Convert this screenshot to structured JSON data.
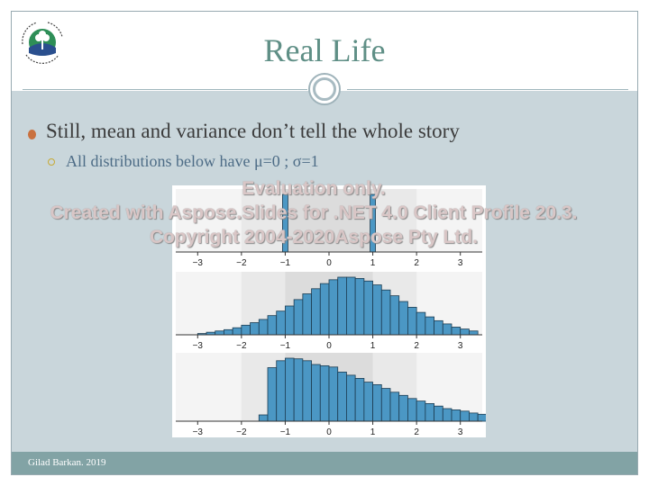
{
  "slide": {
    "title": "Real Life",
    "bullet_main": "Still, mean and variance don’t tell the whole story",
    "bullet_sub": "All distributions below have μ=0 ; σ=1",
    "footer": "Gilad Barkan. 2019"
  },
  "watermark": {
    "line1": "Evaluation only.",
    "line2": "Created with Aspose.Slides for .NET 4.0 Client Profile 20.3.",
    "line3": "Copyright 2004-2020Aspose Pty Ltd."
  },
  "chart_data": [
    {
      "type": "bar",
      "xlim": [
        -3.5,
        3.5
      ],
      "xticks": [
        "−3",
        "−2",
        "−1",
        "0",
        "1",
        "2",
        "3"
      ],
      "x": [
        -1,
        1
      ],
      "values": [
        1,
        1
      ],
      "bar_color": "#4b97c4"
    },
    {
      "type": "bar",
      "xlim": [
        -3.5,
        3.5
      ],
      "xticks": [
        "−3",
        "−2",
        "−1",
        "0",
        "1",
        "2",
        "3"
      ],
      "bin_start": -3.0,
      "bin_width": 0.2,
      "values": [
        0.02,
        0.04,
        0.06,
        0.08,
        0.11,
        0.15,
        0.19,
        0.24,
        0.3,
        0.37,
        0.45,
        0.55,
        0.64,
        0.72,
        0.8,
        0.86,
        0.9,
        0.9,
        0.88,
        0.84,
        0.78,
        0.7,
        0.61,
        0.52,
        0.43,
        0.35,
        0.28,
        0.22,
        0.17,
        0.12,
        0.09,
        0.06
      ],
      "bar_color": "#4b97c4"
    },
    {
      "type": "bar",
      "xlim": [
        -3.5,
        3.5
      ],
      "xticks": [
        "−3",
        "−2",
        "−1",
        "0",
        "1",
        "2",
        "3"
      ],
      "bin_start": -1.6,
      "bin_width": 0.2,
      "values": [
        0.1,
        0.85,
        0.96,
        1.0,
        0.99,
        0.96,
        0.9,
        0.88,
        0.86,
        0.78,
        0.73,
        0.68,
        0.62,
        0.58,
        0.52,
        0.46,
        0.41,
        0.36,
        0.32,
        0.28,
        0.24,
        0.2,
        0.18,
        0.16,
        0.13,
        0.11,
        0.08,
        0.06
      ],
      "bar_color": "#4b97c4"
    }
  ]
}
